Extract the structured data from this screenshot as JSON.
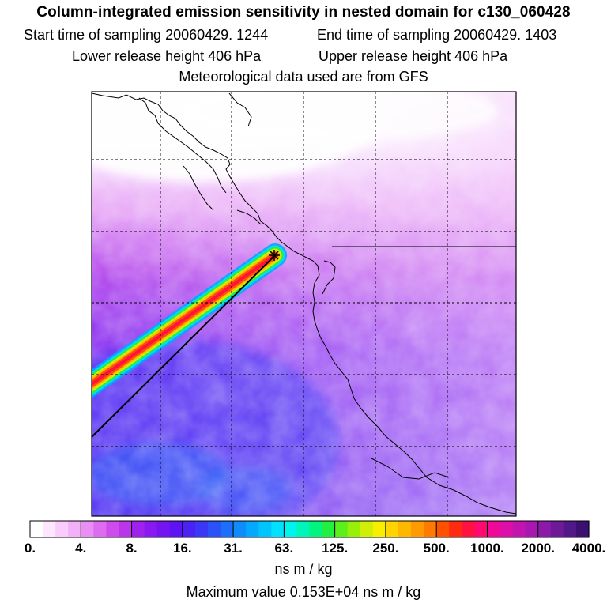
{
  "header": {
    "title": "Column-integrated emission sensitivity in nested domain for c130_060428",
    "start_label": "Start time of sampling 20060429.  1244",
    "end_label": "End time of sampling 20060429.  1403",
    "lower_label": "Lower release height  406 hPa",
    "upper_label": "Upper release height  406 hPa",
    "met_label": "Meteorological data used are from GFS"
  },
  "chart_data": {
    "type": "heatmap",
    "title": "Column-integrated emission sensitivity in nested domain for c130_060428",
    "colorbar": {
      "tick_labels": [
        "0.",
        "4.",
        "8.",
        "16.",
        "31.",
        "63.",
        "125.",
        "250.",
        "500.",
        "1000.",
        "2000.",
        "4000."
      ],
      "units": "ns m / kg",
      "colors": [
        "#ffffff",
        "#fde6fe",
        "#f9ccfb",
        "#f2b0f8",
        "#e98ff4",
        "#dd6cf0",
        "#cf4cec",
        "#bb35ea",
        "#a020ee",
        "#8a18f0",
        "#7414f0",
        "#5e14f2",
        "#4a22f4",
        "#3a38f6",
        "#2a52f8",
        "#1c6ffa",
        "#0e8cfc",
        "#04a8fd",
        "#00c4fe",
        "#00e0ff",
        "#00f4ee",
        "#00f6b8",
        "#00f47e",
        "#22f040",
        "#5cef1a",
        "#98ef0a",
        "#cff006",
        "#f7ee00",
        "#ffd400",
        "#ffb800",
        "#ff9a00",
        "#ff7a00",
        "#ff5200",
        "#ff2a10",
        "#ff1240",
        "#ff0a70",
        "#f00898",
        "#dc10a8",
        "#c414ae",
        "#a818b0",
        "#8c1aa8",
        "#6e1a98",
        "#521888",
        "#3c1070"
      ]
    },
    "max_value_label": "Maximum value  0.153E+04 ns m / kg",
    "release_marker": "release-point-star"
  }
}
